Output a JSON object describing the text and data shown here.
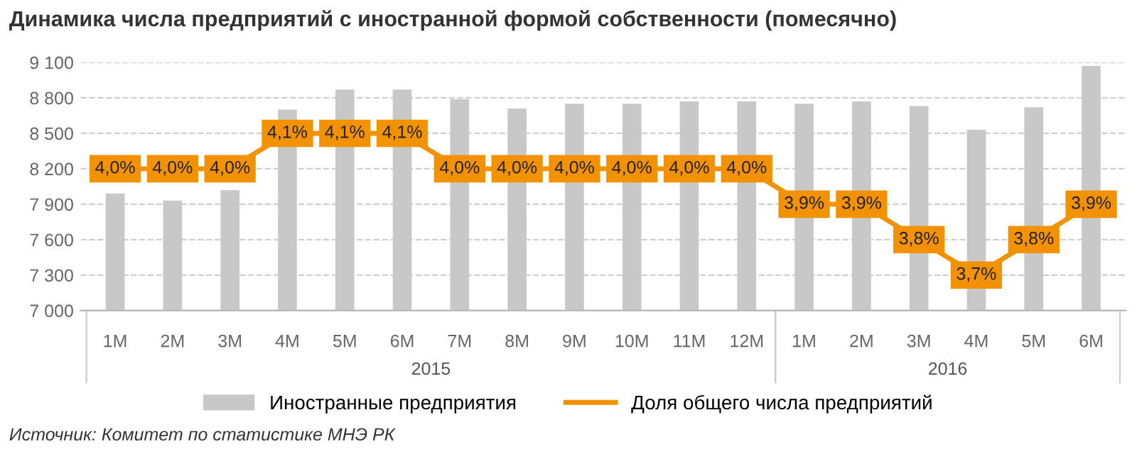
{
  "chart_data": {
    "type": "bar",
    "title": "Динамика числа предприятий с иностранной формой собственности (помесячно)",
    "categories": [
      "1M",
      "2M",
      "3M",
      "4M",
      "5M",
      "6M",
      "7M",
      "8M",
      "9M",
      "10M",
      "11M",
      "12M",
      "1M",
      "2M",
      "3M",
      "4M",
      "5M",
      "6M"
    ],
    "series": [
      {
        "name": "Иностранные предприятия",
        "color": "#c8c8c8",
        "values": [
          7990,
          7930,
          8020,
          8700,
          8870,
          8870,
          8790,
          8710,
          8750,
          8750,
          8770,
          8770,
          8750,
          8770,
          8730,
          8530,
          8720,
          9070
        ]
      },
      {
        "name": "Доля общего числа предприятий",
        "type": "line",
        "axis": "y2",
        "color": "#f39200",
        "marker": "square",
        "values": [
          4.0,
          4.0,
          4.0,
          4.1,
          4.1,
          4.1,
          4.0,
          4.0,
          4.0,
          4.0,
          4.0,
          4.0,
          3.9,
          3.9,
          3.8,
          3.7,
          3.8,
          3.9
        ],
        "value_labels": [
          "4,0%",
          "4,0%",
          "4,0%",
          "4,1%",
          "4,1%",
          "4,1%",
          "4,0%",
          "4,0%",
          "4,0%",
          "4,0%",
          "4,0%",
          "4,0%",
          "3,9%",
          "3,9%",
          "3,8%",
          "3,7%",
          "3,8%",
          "3,9%"
        ]
      }
    ],
    "ylim": [
      7000,
      9100
    ],
    "yticks": [
      {
        "value": 7000,
        "label": "7 000"
      },
      {
        "value": 7300,
        "label": "7 300"
      },
      {
        "value": 7600,
        "label": "7 600"
      },
      {
        "value": 7900,
        "label": "7 900"
      },
      {
        "value": 8200,
        "label": "8 200"
      },
      {
        "value": 8500,
        "label": "8 500"
      },
      {
        "value": 8800,
        "label": "8 800"
      },
      {
        "value": 9100,
        "label": "9 100"
      }
    ],
    "y2lim": [
      3.6,
      4.3
    ],
    "grid": "y",
    "legend": "bottom",
    "annotations": [
      "2015",
      "2016",
      "Источник: Комитет по статистике МНЭ РК"
    ]
  }
}
